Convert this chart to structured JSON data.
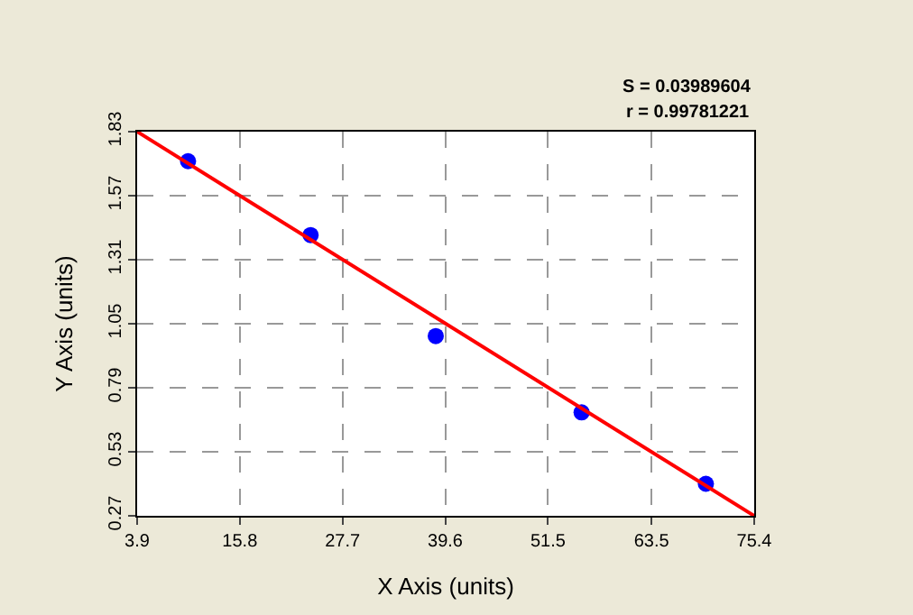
{
  "chart_data": {
    "type": "scatter",
    "xlabel": "X Axis (units)",
    "ylabel": "Y Axis (units)",
    "annotations": [
      "S = 0.03989604",
      "r = 0.99781221"
    ],
    "xlim": [
      3.9,
      75.4
    ],
    "xticks": [
      3.9,
      15.8,
      27.7,
      39.6,
      51.5,
      63.5,
      75.4
    ],
    "ylim": [
      0.27,
      1.83
    ],
    "yticks": [
      0.27,
      0.53,
      0.79,
      1.05,
      1.31,
      1.57,
      1.83
    ],
    "grid": true,
    "marker": "circle",
    "series": [
      {
        "color": "#0000ff",
        "x": [
          9.8,
          24.0,
          38.5,
          55.4,
          69.8
        ],
        "values": [
          1.71,
          1.41,
          1.0,
          0.69,
          0.4
        ]
      },
      {
        "type": "line",
        "marker": "none",
        "color": "#ff0000",
        "x": [
          3.9,
          75.4
        ],
        "values": [
          1.83,
          0.27
        ]
      }
    ]
  }
}
